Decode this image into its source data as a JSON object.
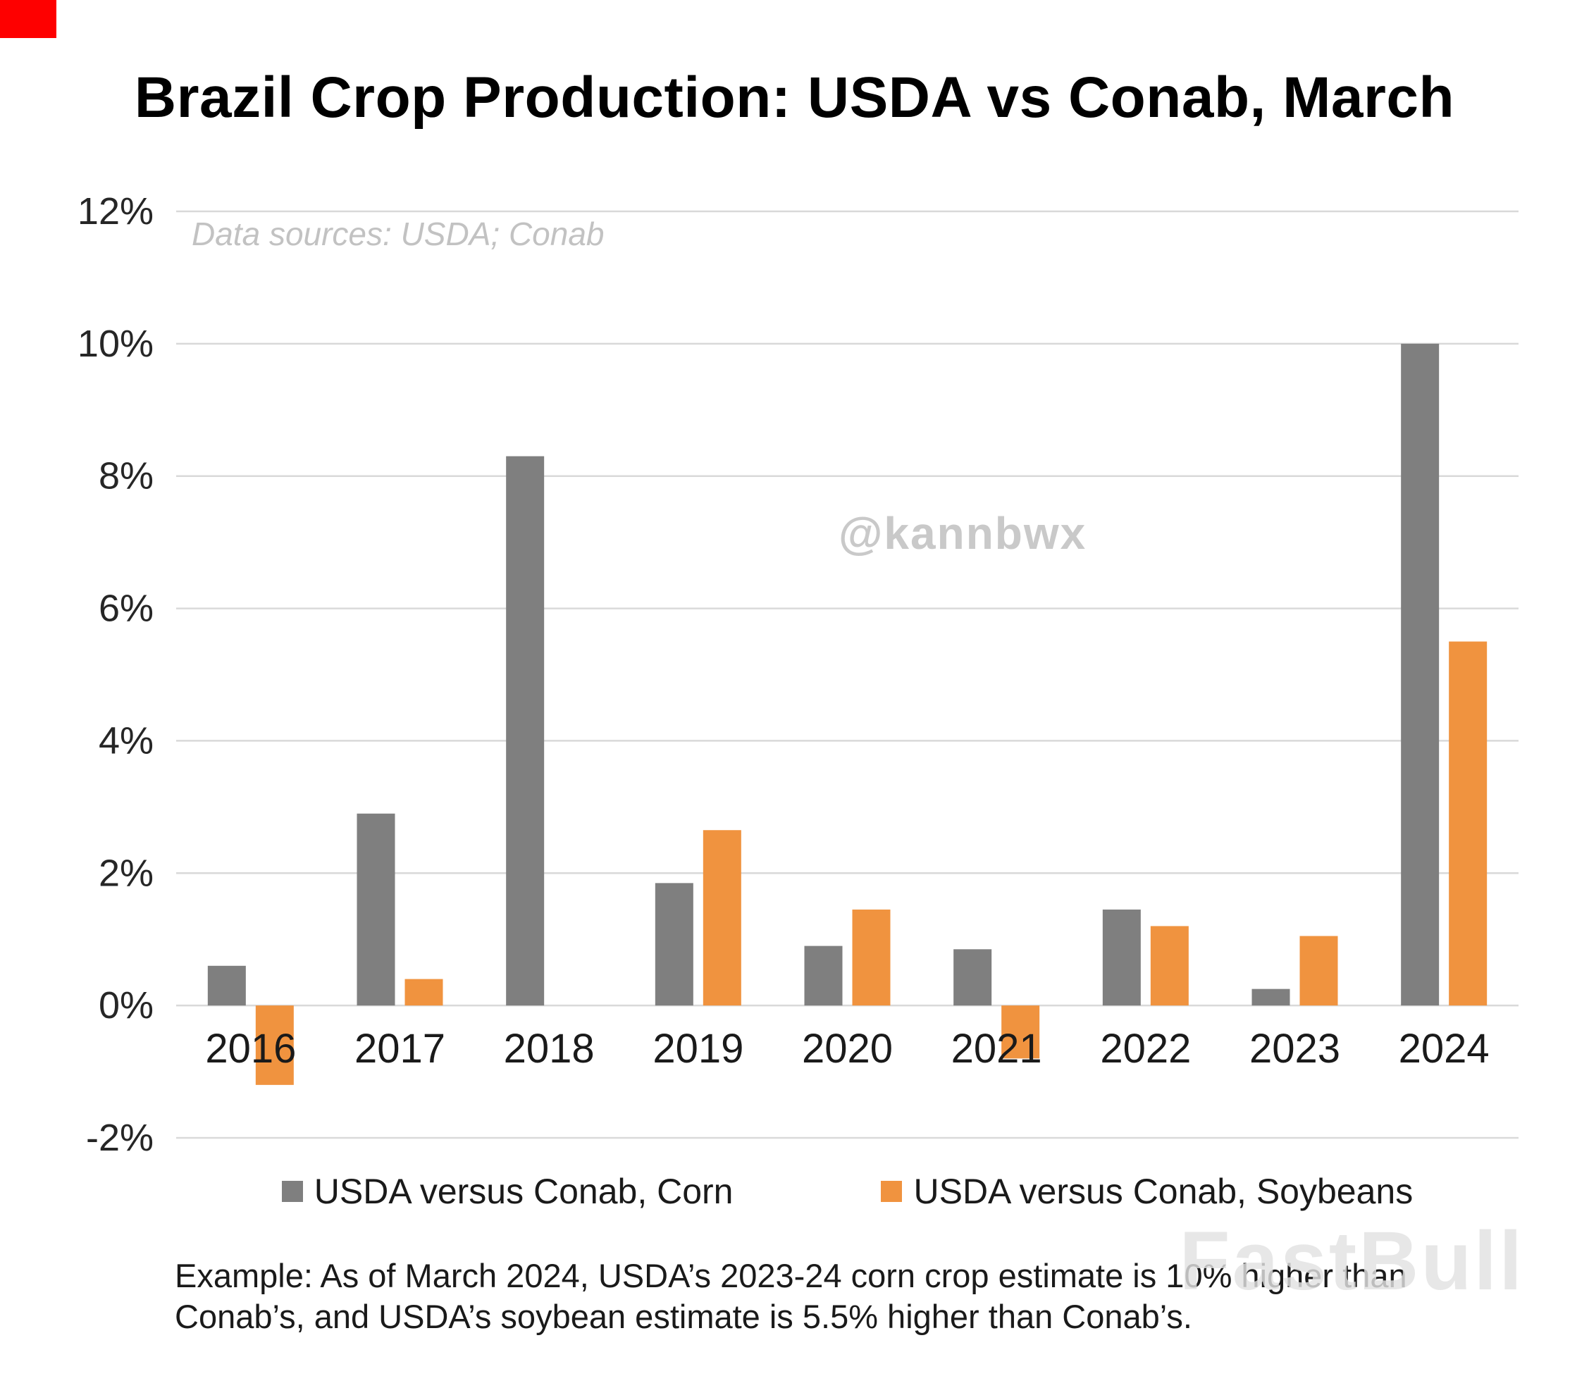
{
  "page": {
    "title": "Brazil Crop Production: USDA vs Conab, March",
    "data_sources_note": "Data sources: USDA; Conab",
    "watermark": "@kannbwx",
    "brand_watermark": "FastBull",
    "footer_lines": [
      "Example: As of March 2024, USDA’s 2023-24 corn crop estimate is 10% higher than",
      "Conab’s, and USDA’s soybean estimate is 5.5% higher than Conab’s."
    ]
  },
  "colors": {
    "corn": "#7f7f7f",
    "soybeans": "#f0933f",
    "gridline": "#d9d9d9",
    "axis_text": "#262626",
    "red_corner": "#fe0000"
  },
  "chart_data": {
    "type": "bar",
    "title": "Brazil Crop Production: USDA vs Conab, March",
    "categories": [
      "2016",
      "2017",
      "2018",
      "2019",
      "2020",
      "2021",
      "2022",
      "2023",
      "2024"
    ],
    "series": [
      {
        "name": "USDA versus Conab, Corn",
        "color_key": "corn",
        "values": [
          0.6,
          2.9,
          8.3,
          1.85,
          0.9,
          0.85,
          1.45,
          0.25,
          10.0
        ]
      },
      {
        "name": "USDA versus Conab, Soybeans",
        "color_key": "soybeans",
        "values": [
          -1.2,
          0.4,
          0,
          2.65,
          1.45,
          -0.8,
          1.2,
          1.05,
          5.5
        ]
      }
    ],
    "ylim": [
      -2,
      12
    ],
    "ytick_step": 2,
    "ytick_format": "percent",
    "grid": true,
    "legend_position": "bottom"
  }
}
